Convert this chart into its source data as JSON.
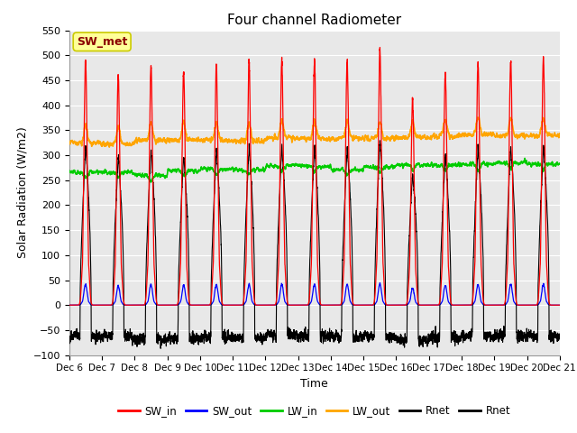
{
  "title": "Four channel Radiometer",
  "xlabel": "Time",
  "ylabel": "Solar Radiation (W/m2)",
  "ylim": [
    -100,
    550
  ],
  "annotation_text": "SW_met",
  "annotation_box_color": "#FFFF99",
  "annotation_text_color": "#8B0000",
  "x_tick_labels": [
    "Dec 6",
    "Dec 7",
    "Dec 8",
    "Dec 9",
    "Dec 10",
    "Dec 11",
    "Dec 12",
    "Dec 13",
    "Dec 14",
    "Dec 15",
    "Dec 16",
    "Dec 17",
    "Dec 18",
    "Dec 19",
    "Dec 20",
    "Dec 21"
  ],
  "legend_labels": [
    "SW_in",
    "SW_out",
    "LW_in",
    "LW_out",
    "Rnet",
    "Rnet"
  ],
  "legend_colors": [
    "#FF0000",
    "#0000FF",
    "#00CC00",
    "#FFA500",
    "#000000",
    "#000000"
  ],
  "colors": {
    "SW_in": "#FF0000",
    "SW_out": "#0000FF",
    "LW_in": "#00CC00",
    "LW_out": "#FFA500",
    "Rnet": "#000000"
  },
  "background_color": "#E8E8E8",
  "grid_color": "#FFFFFF",
  "num_days": 15,
  "pts_per_day": 288,
  "yticks": [
    -100,
    -50,
    0,
    50,
    100,
    150,
    200,
    250,
    300,
    350,
    400,
    450,
    500,
    550
  ],
  "peak_heights_SW": [
    490,
    460,
    480,
    465,
    480,
    490,
    490,
    490,
    490,
    510,
    410,
    465,
    485,
    490,
    495
  ]
}
